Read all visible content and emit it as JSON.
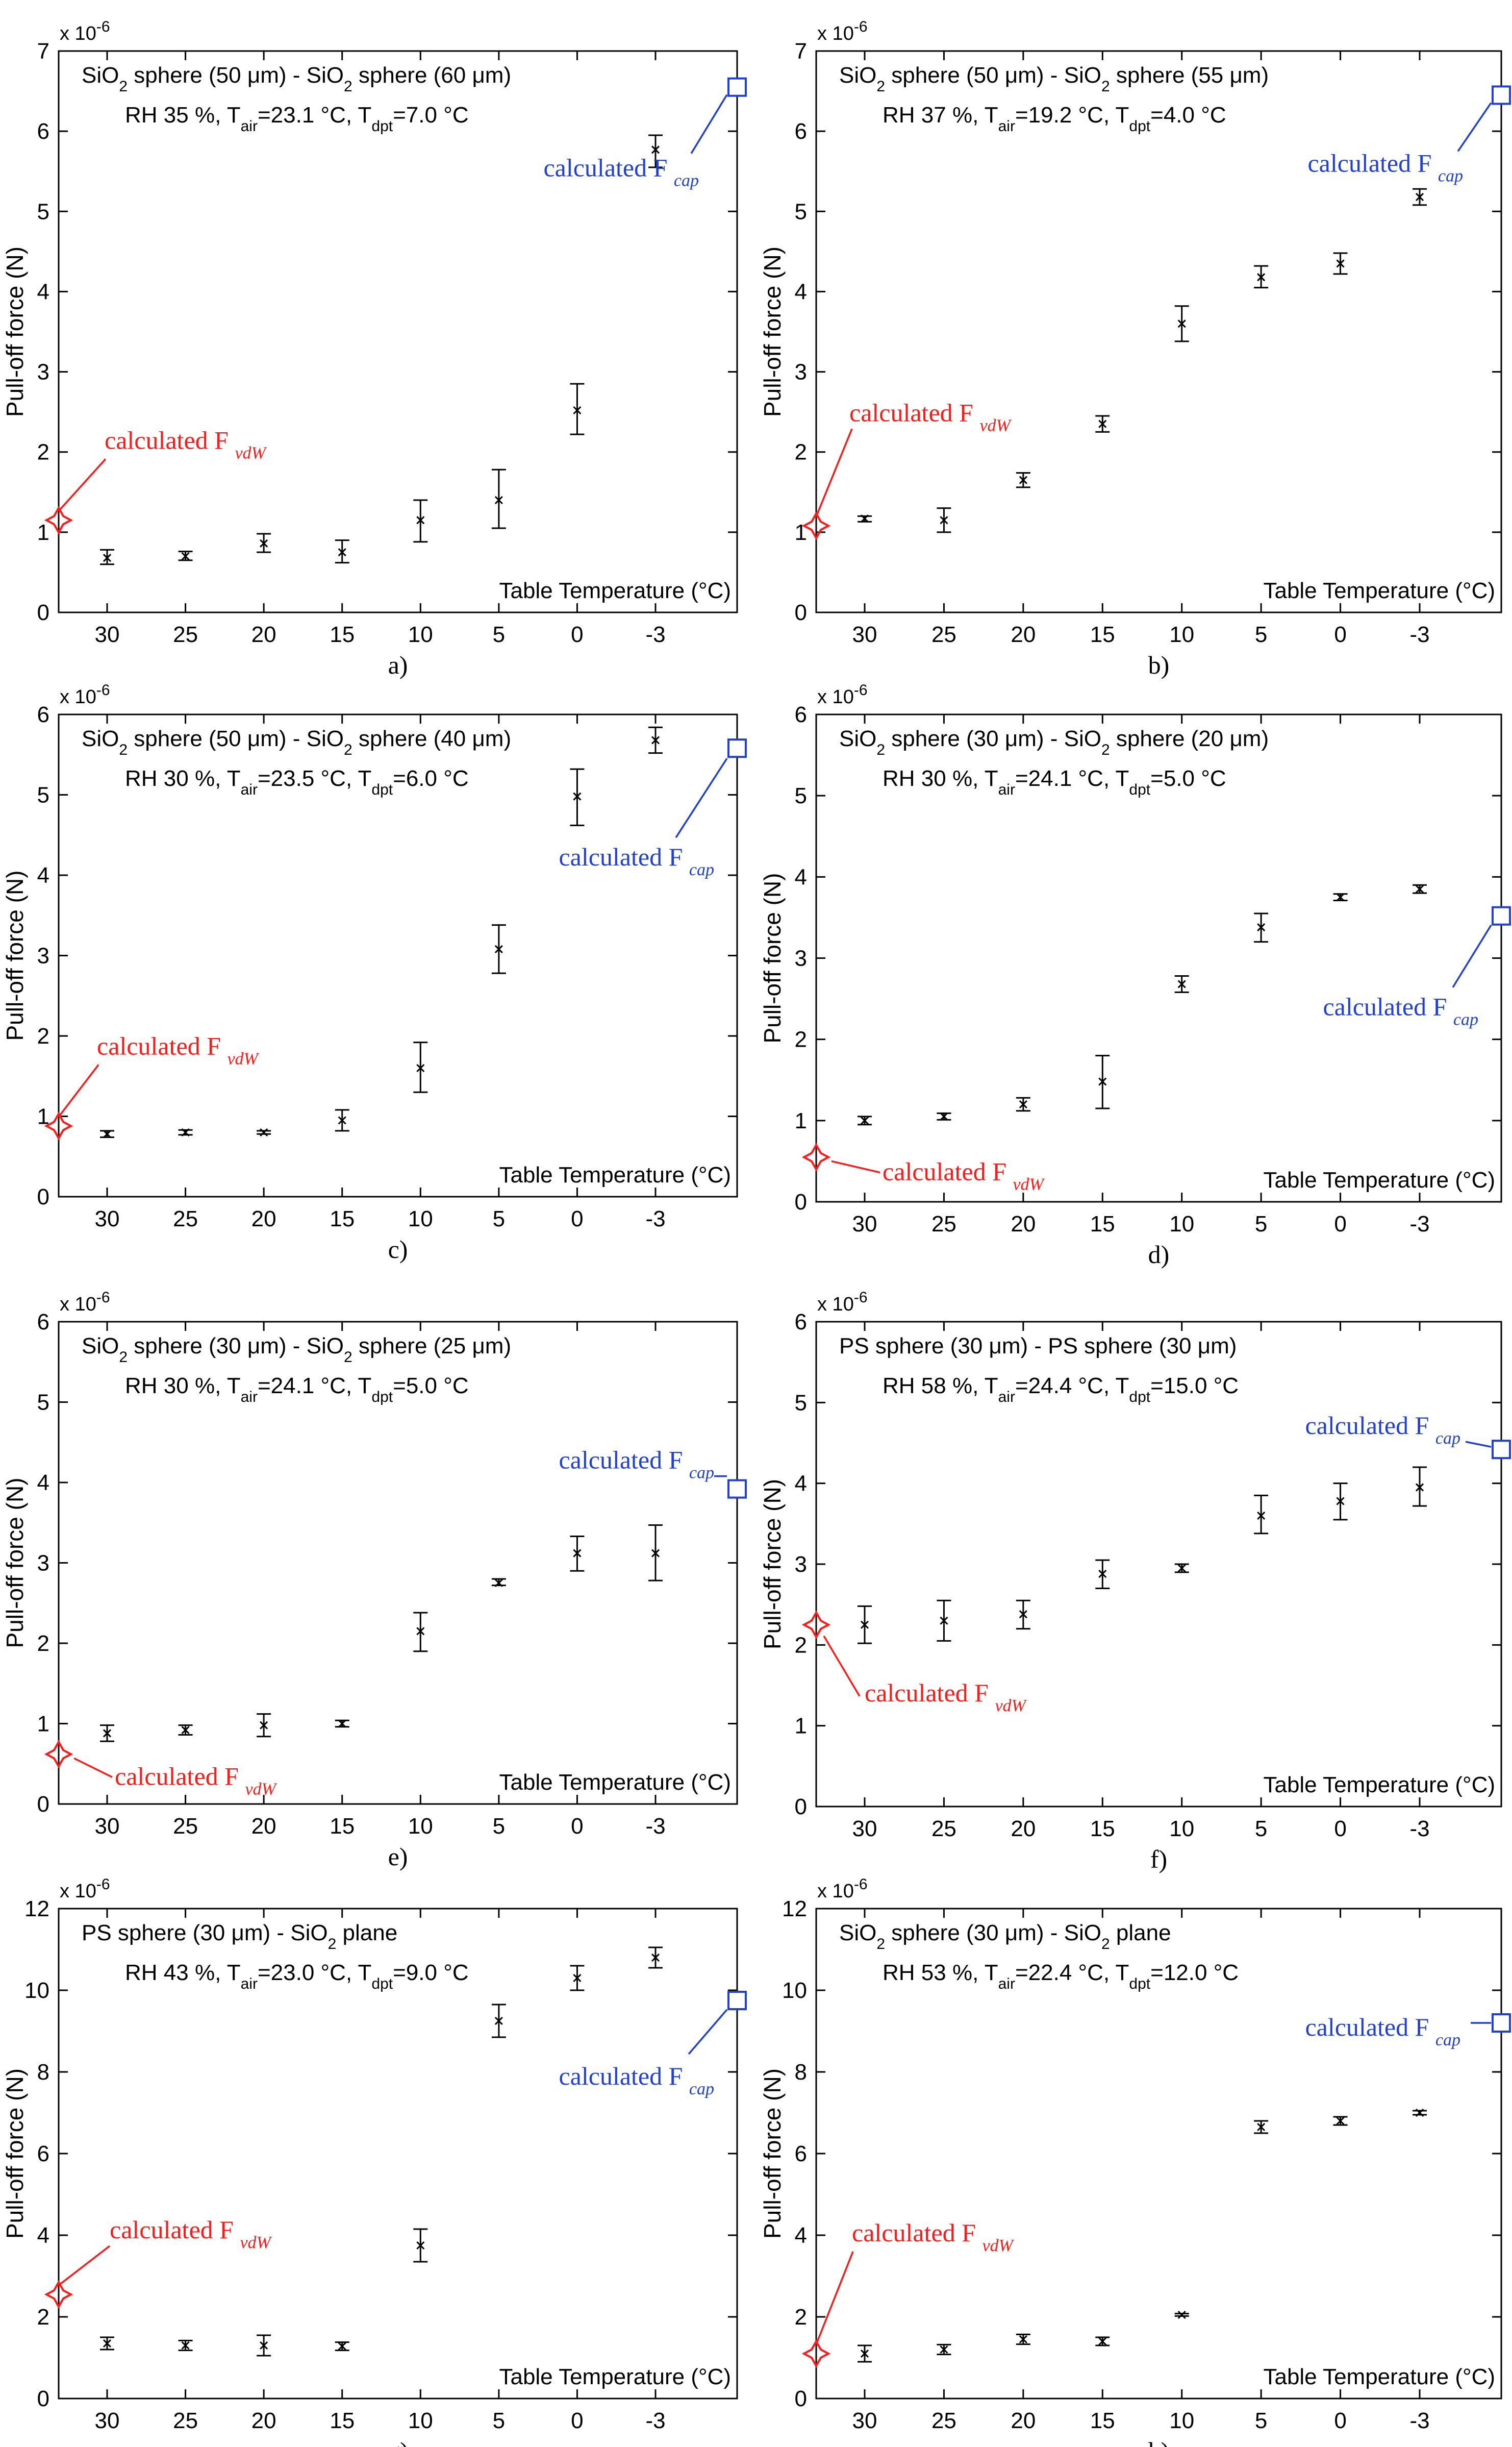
{
  "figure": {
    "xlabel": "Table Temperature (°C)",
    "ylabel": "Pull-off force (N)",
    "exponent": "x 10",
    "exponent_power": "-6",
    "vdw_label": "calculated F",
    "vdw_sub": "vdW",
    "cap_label": "calculated F",
    "cap_sub": "cap",
    "colors": {
      "vdw": "#ff1a1a",
      "cap": "#1f3fd6",
      "data": "#000000",
      "axis": "#000000"
    }
  },
  "chart_data": [
    {
      "type": "scatter",
      "panel": "a)",
      "title_parts": [
        "SiO",
        "2",
        " sphere (50 μm) - SiO",
        "2",
        " sphere (60 μm)"
      ],
      "info_parts": [
        "RH 35 %, T",
        "air",
        "=23.1 °C, T",
        "dpt",
        "=7.0 °C"
      ],
      "categories": [
        "30",
        "25",
        "20",
        "15",
        "10",
        "5",
        "0",
        "-3"
      ],
      "values": [
        0.68,
        0.7,
        0.86,
        0.75,
        1.15,
        1.4,
        2.52,
        5.77
      ],
      "err_low": [
        0.6,
        0.65,
        0.75,
        0.62,
        0.88,
        1.05,
        2.22,
        5.55
      ],
      "err_high": [
        0.78,
        0.76,
        0.98,
        0.9,
        1.4,
        1.78,
        2.85,
        5.95
      ],
      "ylim": [
        0,
        7
      ],
      "yticks": [
        0,
        1,
        2,
        3,
        4,
        5,
        6,
        7
      ],
      "fvdw": 1.15,
      "fcap": 6.55
    },
    {
      "type": "scatter",
      "panel": "b)",
      "title_parts": [
        "SiO",
        "2",
        " sphere (50 μm) - SiO",
        "2",
        " sphere (55 μm)"
      ],
      "info_parts": [
        "RH 37 %, T",
        "air",
        "=19.2 °C, T",
        "dpt",
        "=4.0 °C"
      ],
      "categories": [
        "30",
        "25",
        "20",
        "15",
        "10",
        "5",
        "0",
        "-3"
      ],
      "values": [
        1.17,
        1.15,
        1.65,
        2.35,
        3.6,
        4.18,
        4.35,
        5.18
      ],
      "err_low": [
        1.13,
        1.0,
        1.56,
        2.25,
        3.38,
        4.05,
        4.22,
        5.08
      ],
      "err_high": [
        1.2,
        1.3,
        1.74,
        2.45,
        3.82,
        4.32,
        4.48,
        5.28
      ],
      "ylim": [
        0,
        7
      ],
      "yticks": [
        0,
        1,
        2,
        3,
        4,
        5,
        6,
        7
      ],
      "fvdw": 1.08,
      "fcap": 6.45
    },
    {
      "type": "scatter",
      "panel": "c)",
      "title_parts": [
        "SiO",
        "2",
        " sphere (50 μm) - SiO",
        "2",
        " sphere (40 μm)"
      ],
      "info_parts": [
        "RH 30 %, T",
        "air",
        "=23.5 °C, T",
        "dpt",
        "=6.0 °C"
      ],
      "categories": [
        "30",
        "25",
        "20",
        "15",
        "10",
        "5",
        "0",
        "-3"
      ],
      "values": [
        0.78,
        0.8,
        0.8,
        0.95,
        1.6,
        3.08,
        4.98,
        5.68
      ],
      "err_low": [
        0.74,
        0.77,
        0.78,
        0.82,
        1.3,
        2.78,
        4.62,
        5.52
      ],
      "err_high": [
        0.82,
        0.83,
        0.82,
        1.08,
        1.92,
        3.38,
        5.32,
        5.84
      ],
      "ylim": [
        0,
        6
      ],
      "yticks": [
        0,
        1,
        2,
        3,
        4,
        5,
        6
      ],
      "fvdw": 0.88,
      "fcap": 5.58
    },
    {
      "type": "scatter",
      "panel": "d)",
      "title_parts": [
        "SiO",
        "2",
        " sphere (30 μm) - SiO",
        "2",
        " sphere (20 μm)"
      ],
      "info_parts": [
        "RH 30 %, T",
        "air",
        "=24.1 °C, T",
        "dpt",
        "=5.0 °C"
      ],
      "categories": [
        "30",
        "25",
        "20",
        "15",
        "10",
        "5",
        "0",
        "-3"
      ],
      "values": [
        1.0,
        1.05,
        1.2,
        1.48,
        2.68,
        3.38,
        3.75,
        3.85
      ],
      "err_low": [
        0.95,
        1.01,
        1.12,
        1.15,
        2.58,
        3.2,
        3.71,
        3.8
      ],
      "err_high": [
        1.05,
        1.09,
        1.28,
        1.8,
        2.78,
        3.55,
        3.79,
        3.9
      ],
      "ylim": [
        0,
        6
      ],
      "yticks": [
        0,
        1,
        2,
        3,
        4,
        5,
        6
      ],
      "fvdw": 0.55,
      "fcap": 3.52
    },
    {
      "type": "scatter",
      "panel": "e)",
      "title_parts": [
        "SiO",
        "2",
        " sphere (30 μm) - SiO",
        "2",
        " sphere (25 μm)"
      ],
      "info_parts": [
        "RH 30 %, T",
        "air",
        "=24.1 °C, T",
        "dpt",
        "=5.0 °C"
      ],
      "categories": [
        "30",
        "25",
        "20",
        "15",
        "10",
        "5",
        "0",
        "-3"
      ],
      "values": [
        0.88,
        0.92,
        0.98,
        1.0,
        2.15,
        2.75,
        3.12,
        3.12
      ],
      "err_low": [
        0.78,
        0.86,
        0.84,
        0.96,
        1.9,
        2.72,
        2.9,
        2.78
      ],
      "err_high": [
        0.98,
        0.98,
        1.12,
        1.04,
        2.38,
        2.8,
        3.33,
        3.47
      ],
      "ylim": [
        0,
        6
      ],
      "yticks": [
        0,
        1,
        2,
        3,
        4,
        5,
        6
      ],
      "fvdw": 0.62,
      "fcap": 3.92
    },
    {
      "type": "scatter",
      "panel": "f)",
      "title_parts": [
        "PS sphere (30 μm) - PS sphere (30 μm)"
      ],
      "info_parts": [
        "RH 58 %, T",
        "air",
        "=24.4 °C, T",
        "dpt",
        "=15.0 °C"
      ],
      "categories": [
        "30",
        "25",
        "20",
        "15",
        "10",
        "5",
        "0",
        "-3"
      ],
      "values": [
        2.25,
        2.3,
        2.38,
        2.88,
        2.95,
        3.6,
        3.78,
        3.95
      ],
      "err_low": [
        2.02,
        2.05,
        2.2,
        2.7,
        2.9,
        3.38,
        3.55,
        3.72
      ],
      "err_high": [
        2.48,
        2.55,
        2.55,
        3.05,
        3.0,
        3.85,
        4.0,
        4.2
      ],
      "ylim": [
        0,
        6
      ],
      "yticks": [
        0,
        1,
        2,
        3,
        4,
        5,
        6
      ],
      "fvdw": 2.25,
      "fcap": 4.42
    },
    {
      "type": "scatter",
      "panel": "g)",
      "title_parts": [
        "PS sphere (30 μm) - SiO",
        "2",
        " plane"
      ],
      "info_parts": [
        "RH 43 %, T",
        "air",
        "=23.0 °C, T",
        "dpt",
        "=9.0 °C"
      ],
      "categories": [
        "30",
        "25",
        "20",
        "15",
        "10",
        "5",
        "0",
        "-3"
      ],
      "values": [
        1.35,
        1.3,
        1.3,
        1.28,
        3.75,
        9.25,
        10.3,
        10.8
      ],
      "err_low": [
        1.2,
        1.18,
        1.05,
        1.18,
        3.35,
        8.85,
        10.0,
        10.55
      ],
      "err_high": [
        1.5,
        1.42,
        1.55,
        1.38,
        4.15,
        9.65,
        10.6,
        11.05
      ],
      "ylim": [
        0,
        12
      ],
      "yticks": [
        0,
        2,
        4,
        6,
        8,
        10,
        12
      ],
      "fvdw": 2.55,
      "fcap": 9.75
    },
    {
      "type": "scatter",
      "panel": "h)",
      "title_parts": [
        "SiO",
        "2",
        " sphere (30 μm) - SiO",
        "2",
        " plane"
      ],
      "info_parts": [
        "RH 53 %, T",
        "air",
        "=22.4 °C, T",
        "dpt",
        "=12.0 °C"
      ],
      "categories": [
        "30",
        "25",
        "20",
        "15",
        "10",
        "5",
        "0",
        "-3"
      ],
      "values": [
        1.1,
        1.2,
        1.45,
        1.4,
        2.05,
        6.65,
        6.8,
        7.0
      ],
      "err_low": [
        0.9,
        1.08,
        1.33,
        1.3,
        2.02,
        6.5,
        6.7,
        6.95
      ],
      "err_high": [
        1.3,
        1.32,
        1.57,
        1.5,
        2.08,
        6.8,
        6.9,
        7.05
      ],
      "ylim": [
        0,
        12
      ],
      "yticks": [
        0,
        2,
        4,
        6,
        8,
        10,
        12
      ],
      "fvdw": 1.1,
      "fcap": 9.2
    }
  ]
}
